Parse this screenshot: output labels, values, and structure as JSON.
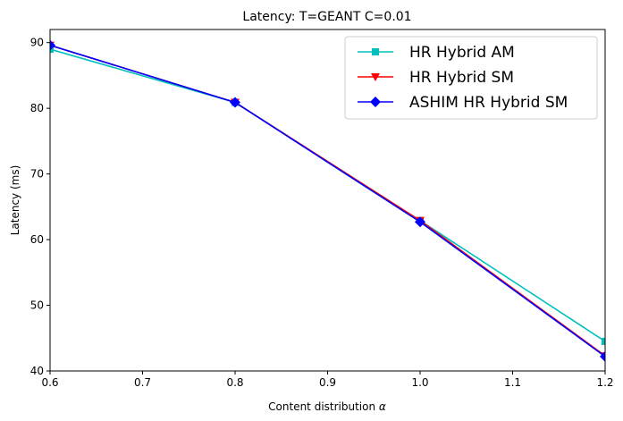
{
  "chart_data": {
    "type": "line",
    "title": "Latency: T=GEANT C=0.01",
    "xlabel_prefix": "Content distribution ",
    "xlabel_symbol": "α",
    "ylabel": "Latency (ms)",
    "xlim": [
      0.6,
      1.2
    ],
    "ylim": [
      40,
      92
    ],
    "x_ticks": [
      0.6,
      0.7,
      0.8,
      0.9,
      1.0,
      1.1,
      1.2
    ],
    "x_tick_labels": [
      "0.6",
      "0.7",
      "0.8",
      "0.9",
      "1.0",
      "1.1",
      "1.2"
    ],
    "y_ticks": [
      40,
      50,
      60,
      70,
      80,
      90
    ],
    "y_tick_labels": [
      "40",
      "50",
      "60",
      "70",
      "80",
      "90"
    ],
    "grid": false,
    "legend_position": "top-right",
    "x": [
      0.6,
      0.8,
      1.0,
      1.2
    ],
    "series": [
      {
        "name": "HR Hybrid AM",
        "color": "#00bfbf",
        "marker": "square",
        "values": [
          89.0,
          80.9,
          62.9,
          44.5
        ]
      },
      {
        "name": "HR Hybrid SM",
        "color": "#ff0000",
        "marker": "triangle-down",
        "values": [
          89.6,
          80.9,
          62.9,
          42.3
        ]
      },
      {
        "name": "ASHIM HR Hybrid SM",
        "color": "#0000ff",
        "marker": "diamond",
        "values": [
          89.6,
          80.9,
          62.7,
          42.2
        ]
      }
    ]
  }
}
